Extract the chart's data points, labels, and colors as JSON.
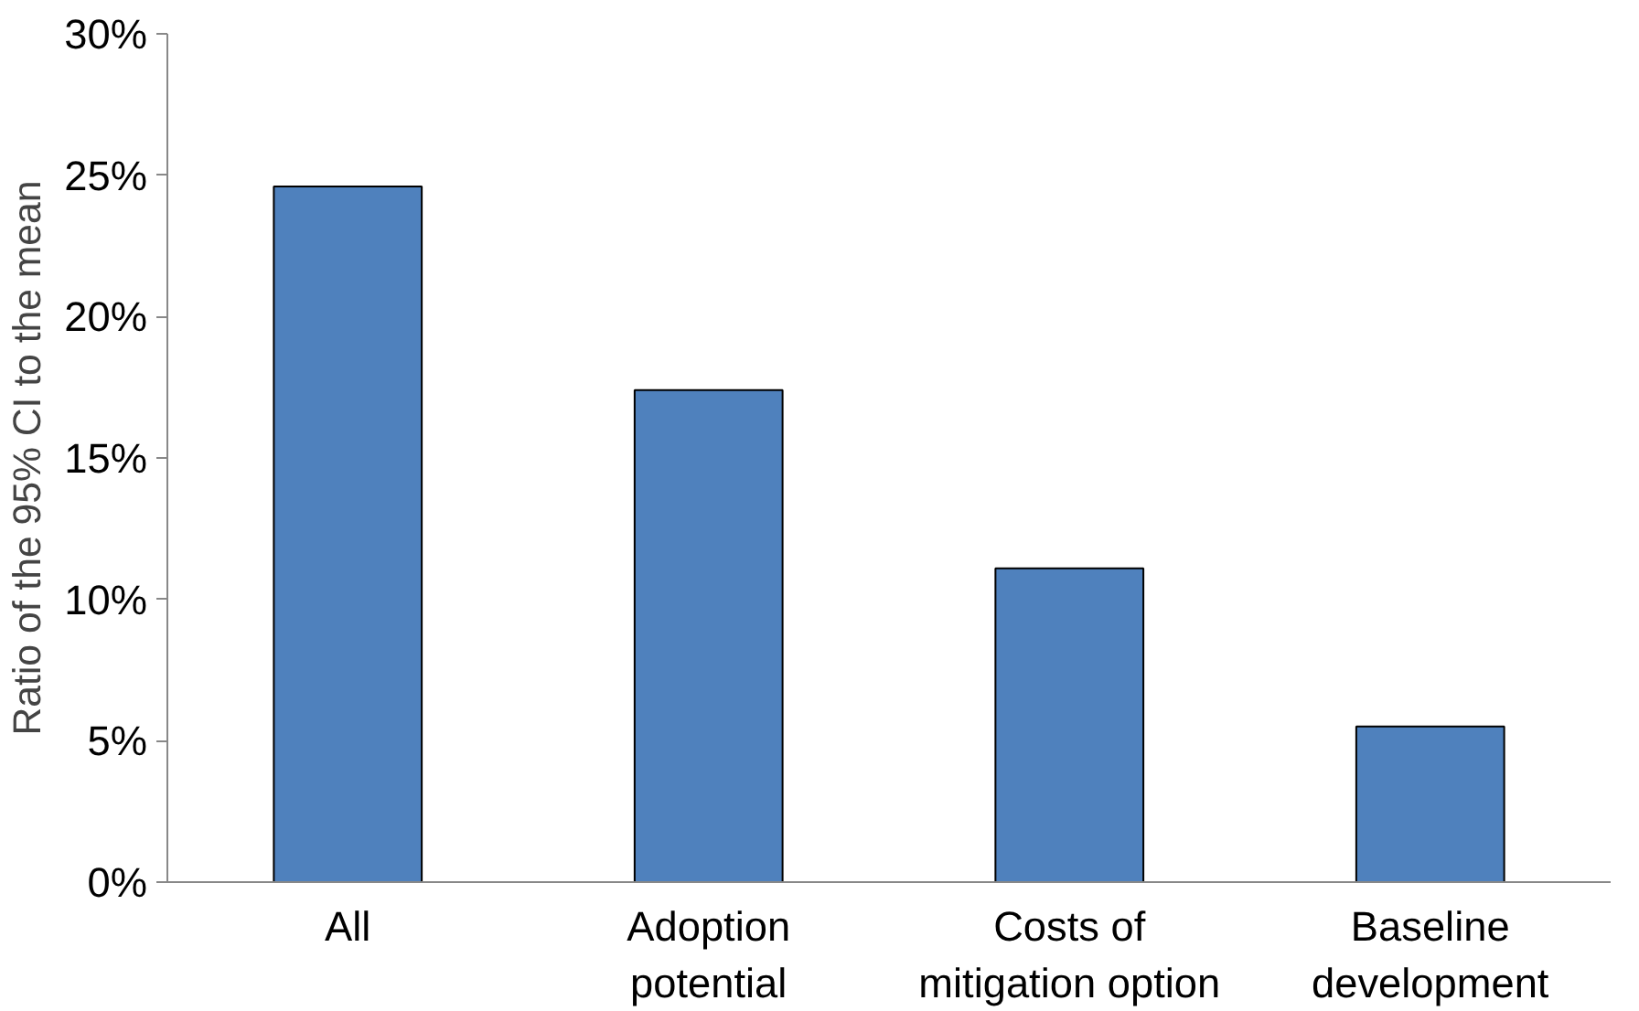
{
  "chart_data": {
    "type": "bar",
    "ylabel": "Ratio of the 95% CI to the mean",
    "categories": [
      "All",
      "Adoption\npotential",
      "Costs of\nmitigation option",
      "Baseline\ndevelopment"
    ],
    "values": [
      24.6,
      17.4,
      11.1,
      5.5
    ],
    "color": "#4f81bd",
    "ylim": [
      0,
      30
    ],
    "yticks": [
      {
        "value": 0,
        "label": "0%"
      },
      {
        "value": 5,
        "label": "5%"
      },
      {
        "value": 10,
        "label": "10%"
      },
      {
        "value": 15,
        "label": "15%"
      },
      {
        "value": 20,
        "label": "20%"
      },
      {
        "value": 25,
        "label": "25%"
      },
      {
        "value": 30,
        "label": "30%"
      }
    ],
    "grid": false
  }
}
